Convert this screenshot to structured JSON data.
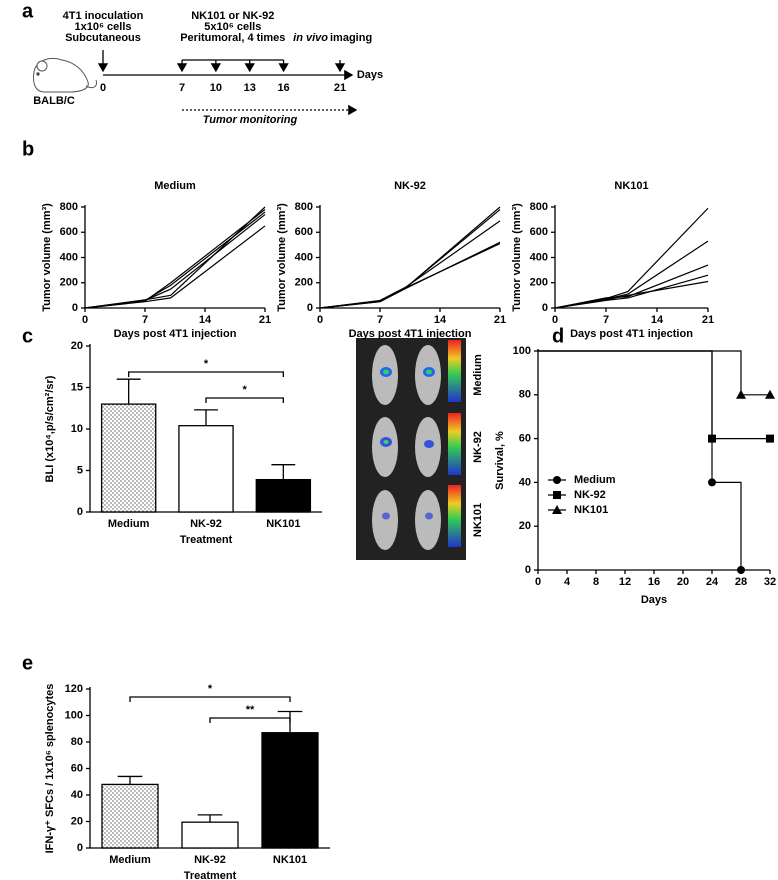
{
  "panel_labels": [
    "a",
    "b",
    "c",
    "d",
    "e"
  ],
  "timeline": {
    "inoculation": [
      "4T1 inoculation",
      "1x10⁶ cells",
      "Subcutaneous"
    ],
    "treatment": [
      "NK101 or NK-92",
      "5x10⁶ cells",
      "Peritumoral, 4 times"
    ],
    "imaging_italic": "in vivo",
    "imaging": "imaging",
    "strain": "BALB/C",
    "days": [
      0,
      7,
      10,
      13,
      16,
      21
    ],
    "day_range": [
      0,
      21
    ],
    "axis_label": "Days",
    "monitoring": "Tumor monitoring"
  },
  "image_labels": [
    "Medium",
    "NK-92",
    "NK101"
  ],
  "chart_data": [
    {
      "type": "line",
      "title": "Medium",
      "xlabel": "Days post 4T1 injection",
      "ylabel": "Tumor volume (mm³)",
      "x": [
        0,
        7,
        10,
        21
      ],
      "xlim": [
        0,
        21
      ],
      "xticks": [
        0,
        7,
        14,
        21
      ],
      "ylim": [
        0,
        800
      ],
      "yticks": [
        0,
        200,
        400,
        600,
        800
      ],
      "series": [
        {
          "color": "#000000",
          "values": [
            0,
            55,
            200,
            780
          ]
        },
        {
          "color": "#000000",
          "values": [
            0,
            60,
            180,
            760
          ]
        },
        {
          "color": "#000000",
          "values": [
            0,
            65,
            100,
            800
          ]
        },
        {
          "color": "#000000",
          "values": [
            0,
            50,
            80,
            650
          ]
        },
        {
          "color": "#000000",
          "values": [
            0,
            60,
            150,
            740
          ]
        }
      ]
    },
    {
      "type": "line",
      "title": "NK-92",
      "xlabel": "Days post 4T1 injection",
      "ylabel": "Tumor volume (mm³)",
      "x": [
        0,
        7,
        10,
        21
      ],
      "xlim": [
        0,
        21
      ],
      "xticks": [
        0,
        7,
        14,
        21
      ],
      "ylim": [
        0,
        800
      ],
      "yticks": [
        0,
        200,
        400,
        600,
        800
      ],
      "series": [
        {
          "color": "#000000",
          "values": [
            0,
            50,
            160,
            800
          ]
        },
        {
          "color": "#000000",
          "values": [
            0,
            55,
            160,
            780
          ]
        },
        {
          "color": "#000000",
          "values": [
            0,
            60,
            165,
            690
          ]
        },
        {
          "color": "#000000",
          "values": [
            0,
            50,
            155,
            520
          ]
        },
        {
          "color": "#000000",
          "values": [
            0,
            55,
            160,
            510
          ]
        }
      ]
    },
    {
      "type": "line",
      "title": "NK101",
      "xlabel": "Days post 4T1 injection",
      "ylabel": "Tumor volume (mm³)",
      "x": [
        0,
        7,
        10,
        21
      ],
      "xlim": [
        0,
        21
      ],
      "xticks": [
        0,
        7,
        14,
        21
      ],
      "ylim": [
        0,
        800
      ],
      "yticks": [
        0,
        200,
        400,
        600,
        800
      ],
      "series": [
        {
          "color": "#000000",
          "values": [
            0,
            75,
            130,
            790
          ]
        },
        {
          "color": "#000000",
          "values": [
            0,
            70,
            110,
            530
          ]
        },
        {
          "color": "#000000",
          "values": [
            0,
            80,
            90,
            340
          ]
        },
        {
          "color": "#000000",
          "values": [
            0,
            60,
            80,
            260
          ]
        },
        {
          "color": "#000000",
          "values": [
            0,
            65,
            100,
            210
          ]
        }
      ]
    },
    {
      "type": "bar",
      "xlabel": "Treatment",
      "ylabel": "BLI (x10⁴,p/s/cm²/sr)",
      "categories": [
        "Medium",
        "NK-92",
        "NK101"
      ],
      "values": [
        13,
        10.4,
        3.9
      ],
      "errors": [
        3,
        1.9,
        1.8
      ],
      "fills": [
        "dotted",
        "white",
        "black"
      ],
      "ylim": [
        0,
        20
      ],
      "yticks": [
        0,
        5,
        10,
        15,
        20
      ],
      "brackets": [
        {
          "from": 0,
          "to": 2,
          "label": "*"
        },
        {
          "from": 1,
          "to": 2,
          "label": "*"
        }
      ]
    },
    {
      "type": "line",
      "step": true,
      "xlabel": "Days",
      "ylabel": "Survival, %",
      "xlim": [
        0,
        32
      ],
      "xticks": [
        0,
        4,
        8,
        12,
        16,
        20,
        24,
        28,
        32
      ],
      "ylim": [
        0,
        100
      ],
      "yticks": [
        0,
        20,
        40,
        60,
        80,
        100
      ],
      "legend": "lower left",
      "series": [
        {
          "name": "Medium",
          "color": "#000000",
          "marker": "circle",
          "x": [
            0,
            24,
            28
          ],
          "values": [
            100,
            40,
            0
          ]
        },
        {
          "name": "NK-92",
          "color": "#000000",
          "marker": "square",
          "x": [
            0,
            24,
            32
          ],
          "values": [
            100,
            60,
            60
          ]
        },
        {
          "name": "NK101",
          "color": "#000000",
          "marker": "triangle",
          "x": [
            0,
            28,
            32
          ],
          "values": [
            100,
            80,
            80
          ]
        }
      ]
    },
    {
      "type": "bar",
      "xlabel": "Treatment",
      "ylabel": "IFN-γ⁺ SFCs / 1x10⁶ splenocytes",
      "categories": [
        "Medium",
        "NK-92",
        "NK101"
      ],
      "values": [
        48,
        19.5,
        87
      ],
      "errors": [
        6,
        5.5,
        16
      ],
      "fills": [
        "dotted",
        "white",
        "black"
      ],
      "ylim": [
        0,
        120
      ],
      "yticks": [
        0,
        20,
        40,
        60,
        80,
        100,
        120
      ],
      "brackets": [
        {
          "from": 0,
          "to": 2,
          "label": "*"
        },
        {
          "from": 1,
          "to": 2,
          "label": "**"
        }
      ]
    }
  ]
}
